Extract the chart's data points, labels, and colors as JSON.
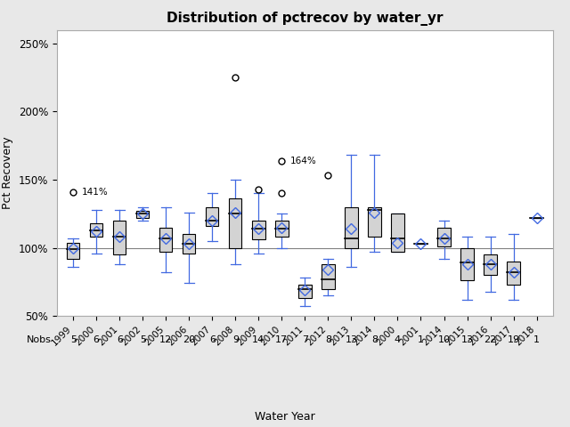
{
  "title": "Distribution of pctrecov by water_yr",
  "xlabel": "Water Year",
  "ylabel": "Pct Recovery",
  "years": [
    "1999",
    "2000",
    "2001",
    "2002",
    "2005",
    "2006",
    "2007",
    "2008",
    "2009",
    "2010",
    "2011",
    "2012",
    "2013",
    "2014",
    "2000",
    "2001",
    "2014",
    "2015",
    "2016",
    "2017",
    "2018"
  ],
  "nobs": [
    5,
    6,
    6,
    5,
    12,
    20,
    6,
    9,
    14,
    17,
    7,
    8,
    13,
    8,
    4,
    1,
    10,
    13,
    22,
    19,
    1
  ],
  "boxes": [
    {
      "q1": 92,
      "med": 99,
      "q3": 104,
      "whislo": 86,
      "whishi": 107,
      "mean": 100,
      "fliers": [
        141
      ],
      "label_fliers": [
        141
      ]
    },
    {
      "q1": 108,
      "med": 113,
      "q3": 118,
      "whislo": 96,
      "whishi": 128,
      "mean": 112,
      "fliers": [],
      "label_fliers": []
    },
    {
      "q1": 95,
      "med": 108,
      "q3": 120,
      "whislo": 88,
      "whishi": 128,
      "mean": 108,
      "fliers": [],
      "label_fliers": []
    },
    {
      "q1": 122,
      "med": 125,
      "q3": 127,
      "whislo": 120,
      "whishi": 130,
      "mean": 125,
      "fliers": [],
      "label_fliers": []
    },
    {
      "q1": 97,
      "med": 107,
      "q3": 115,
      "whislo": 82,
      "whishi": 130,
      "mean": 107,
      "fliers": [],
      "label_fliers": []
    },
    {
      "q1": 96,
      "med": 103,
      "q3": 110,
      "whislo": 74,
      "whishi": 126,
      "mean": 103,
      "fliers": [],
      "label_fliers": []
    },
    {
      "q1": 116,
      "med": 120,
      "q3": 130,
      "whislo": 105,
      "whishi": 140,
      "mean": 120,
      "fliers": [],
      "label_fliers": []
    },
    {
      "q1": 100,
      "med": 125,
      "q3": 136,
      "whislo": 88,
      "whishi": 150,
      "mean": 126,
      "fliers": [
        225
      ],
      "label_fliers": []
    },
    {
      "q1": 106,
      "med": 114,
      "q3": 120,
      "whislo": 96,
      "whishi": 140,
      "mean": 114,
      "fliers": [
        143
      ],
      "label_fliers": []
    },
    {
      "q1": 108,
      "med": 114,
      "q3": 120,
      "whislo": 100,
      "whishi": 125,
      "mean": 115,
      "fliers": [
        164,
        140
      ],
      "label_fliers": [
        164
      ]
    },
    {
      "q1": 63,
      "med": 70,
      "q3": 73,
      "whislo": 57,
      "whishi": 78,
      "mean": 69,
      "fliers": [],
      "label_fliers": []
    },
    {
      "q1": 70,
      "med": 77,
      "q3": 88,
      "whislo": 65,
      "whishi": 92,
      "mean": 84,
      "fliers": [
        153
      ],
      "label_fliers": []
    },
    {
      "q1": 100,
      "med": 107,
      "q3": 130,
      "whislo": 86,
      "whishi": 168,
      "mean": 114,
      "fliers": [],
      "label_fliers": []
    },
    {
      "q1": 108,
      "med": 128,
      "q3": 130,
      "whislo": 97,
      "whishi": 168,
      "mean": 126,
      "fliers": [],
      "label_fliers": []
    },
    {
      "q1": 97,
      "med": 107,
      "q3": 125,
      "whislo": 97,
      "whishi": 125,
      "mean": 104,
      "fliers": [],
      "label_fliers": []
    },
    {
      "q1": 103,
      "med": 103,
      "q3": 103,
      "whislo": 103,
      "whishi": 103,
      "mean": 103,
      "fliers": [],
      "label_fliers": []
    },
    {
      "q1": 101,
      "med": 107,
      "q3": 115,
      "whislo": 92,
      "whishi": 120,
      "mean": 107,
      "fliers": [],
      "label_fliers": []
    },
    {
      "q1": 76,
      "med": 89,
      "q3": 100,
      "whislo": 62,
      "whishi": 108,
      "mean": 88,
      "fliers": [],
      "label_fliers": []
    },
    {
      "q1": 80,
      "med": 88,
      "q3": 95,
      "whislo": 68,
      "whishi": 108,
      "mean": 88,
      "fliers": [],
      "label_fliers": []
    },
    {
      "q1": 73,
      "med": 82,
      "q3": 90,
      "whislo": 62,
      "whishi": 110,
      "mean": 82,
      "fliers": [],
      "label_fliers": []
    },
    {
      "q1": 122,
      "med": 122,
      "q3": 122,
      "whislo": 122,
      "whishi": 122,
      "mean": 122,
      "fliers": [],
      "label_fliers": []
    }
  ],
  "ylim": [
    50,
    260
  ],
  "yticks": [
    50,
    100,
    150,
    200,
    250
  ],
  "ytick_labels": [
    "50%",
    "100%",
    "150%",
    "200%",
    "250%"
  ],
  "ref_line": 100,
  "box_facecolor": "#d3d3d3",
  "box_edgecolor": "#000000",
  "whisker_color": "#4169e1",
  "median_color": "#000000",
  "mean_color": "#4169e1",
  "outlier_color": "#000000",
  "bg_color": "#e8e8e8",
  "plot_bg_color": "#ffffff",
  "annotated_fliers": {
    "141": "141%",
    "164": "164%"
  }
}
